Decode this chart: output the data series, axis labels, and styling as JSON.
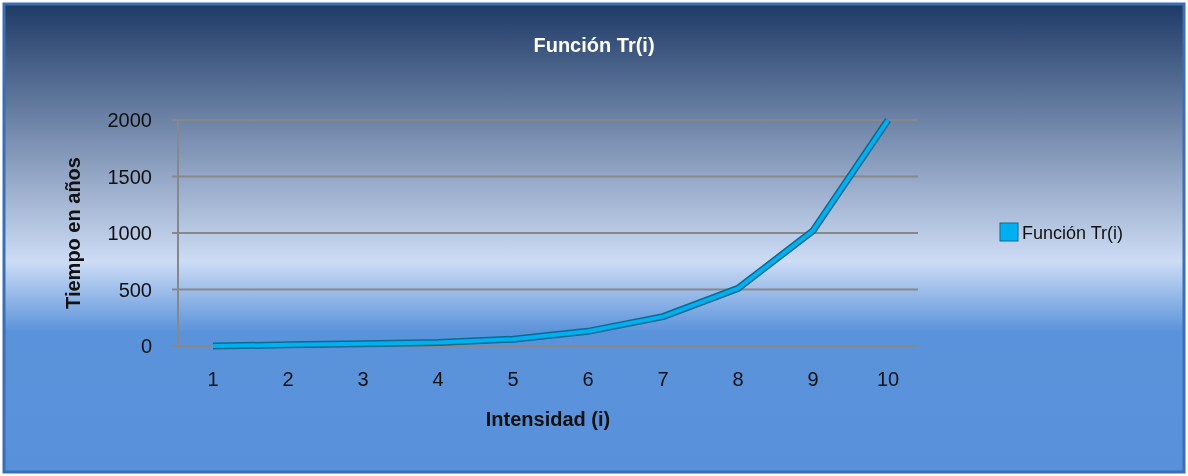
{
  "chart_data": {
    "type": "line",
    "title": "Función Tr(i)",
    "xlabel": "Intensidad (i)",
    "ylabel": "Tiempo en años",
    "categories": [
      "1",
      "2",
      "3",
      "4",
      "5",
      "6",
      "7",
      "8",
      "9",
      "10"
    ],
    "series": [
      {
        "name": "Función Tr(i)",
        "color": "#00b0f0",
        "values": [
          0,
          10,
          20,
          30,
          60,
          130,
          260,
          510,
          1020,
          2000
        ]
      }
    ],
    "ylim": [
      0,
      2000
    ],
    "yticks": [
      0,
      500,
      1000,
      1500,
      2000
    ],
    "grid": "y",
    "legend": "right",
    "marker": "none"
  }
}
